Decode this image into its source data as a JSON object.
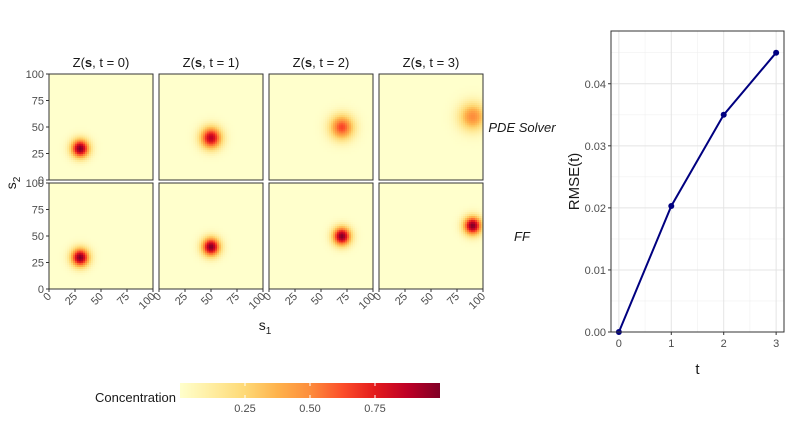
{
  "chart_data": [
    {
      "type": "heatmap",
      "panel_titles": [
        {
          "prefix": "Z(",
          "bold": "s",
          "suffix": ",  t = 0)"
        },
        {
          "prefix": "Z(",
          "bold": "s",
          "suffix": ",  t = 1)"
        },
        {
          "prefix": "Z(",
          "bold": "s",
          "suffix": ",  t = 2)"
        },
        {
          "prefix": "Z(",
          "bold": "s",
          "suffix": ",  t = 3)"
        }
      ],
      "row_labels": [
        "PDE Solver",
        "FF"
      ],
      "xlabel": {
        "base": "s",
        "sub": "1"
      },
      "ylabel": {
        "base": "s",
        "sub": "2"
      },
      "xlim": [
        0,
        100
      ],
      "ylim": [
        0,
        100
      ],
      "xticks": [
        "0",
        "25",
        "50",
        "75",
        "100"
      ],
      "yticks": [
        "0",
        "25",
        "50",
        "75",
        "100"
      ],
      "grid": true,
      "rows": [
        {
          "name": "PDE Solver",
          "panels": [
            {
              "t": 0,
              "cx": 30,
              "cy": 30,
              "sigma": 6,
              "peak": 1.0
            },
            {
              "t": 1,
              "cx": 50,
              "cy": 40,
              "sigma": 7,
              "peak": 0.88
            },
            {
              "t": 2,
              "cx": 70,
              "cy": 50,
              "sigma": 8,
              "peak": 0.65
            },
            {
              "t": 3,
              "cx": 90,
              "cy": 60,
              "sigma": 9,
              "peak": 0.5
            }
          ]
        },
        {
          "name": "FF",
          "panels": [
            {
              "t": 0,
              "cx": 30,
              "cy": 30,
              "sigma": 6,
              "peak": 1.0
            },
            {
              "t": 1,
              "cx": 50,
              "cy": 40,
              "sigma": 6,
              "peak": 1.0
            },
            {
              "t": 2,
              "cx": 70,
              "cy": 50,
              "sigma": 6,
              "peak": 1.0
            },
            {
              "t": 3,
              "cx": 90,
              "cy": 60,
              "sigma": 6,
              "peak": 1.0
            }
          ]
        }
      ],
      "legend": {
        "title": "Concentration",
        "placement": "bottom",
        "ticks": [
          "0.25",
          "0.50",
          "0.75"
        ],
        "tick_values": [
          0.25,
          0.5,
          0.75
        ],
        "range": [
          0,
          1
        ],
        "colors": [
          "#ffffcc",
          "#ffeda0",
          "#fed976",
          "#feb24c",
          "#fd8d3c",
          "#fc4e2a",
          "#e31a1c",
          "#bd0026",
          "#800026"
        ]
      }
    },
    {
      "type": "line",
      "x": [
        0,
        1,
        2,
        3
      ],
      "y": [
        0.0,
        0.0203,
        0.035,
        0.045
      ],
      "xlabel": "t",
      "ylabel": "RMSE(t)",
      "xlim": [
        -0.15,
        3.15
      ],
      "ylim": [
        0,
        0.0485
      ],
      "xticks": [
        "0",
        "1",
        "2",
        "3"
      ],
      "xtick_values": [
        0,
        1,
        2,
        3
      ],
      "yticks": [
        "0.00",
        "0.01",
        "0.02",
        "0.03",
        "0.04"
      ],
      "ytick_values": [
        0,
        0.01,
        0.02,
        0.03,
        0.04
      ],
      "grid": true,
      "color": "#000080"
    }
  ]
}
